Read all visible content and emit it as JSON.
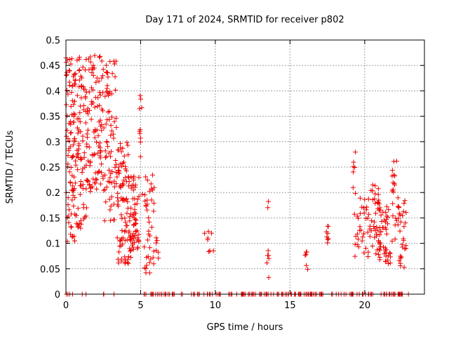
{
  "chart_data": {
    "type": "scatter",
    "title": "Day 171 of 2024, SRMTID for receiver p802",
    "xlabel": "GPS time / hours",
    "ylabel": "SRMTID / TECUs",
    "xlim": [
      0,
      24
    ],
    "ylim": [
      0,
      0.5
    ],
    "xticks": [
      0,
      5,
      10,
      15,
      20
    ],
    "yticks": [
      0,
      0.05,
      0.1,
      0.15,
      0.2,
      0.25,
      0.3,
      0.35,
      0.4,
      0.45,
      0.5
    ],
    "grid": true,
    "marker": "+",
    "marker_color": "#ee0000",
    "series": [
      {
        "name": "p802",
        "clusters": [
          {
            "x_range": [
              0.0,
              0.6
            ],
            "y_range": [
              0.1,
              0.47
            ],
            "count": 90
          },
          {
            "x_range": [
              0.6,
              1.4
            ],
            "y_range": [
              0.12,
              0.47
            ],
            "count": 90
          },
          {
            "x_range": [
              1.4,
              2.4
            ],
            "y_range": [
              0.2,
              0.47
            ],
            "count": 90
          },
          {
            "x_range": [
              2.4,
              3.4
            ],
            "y_range": [
              0.14,
              0.46
            ],
            "count": 80
          },
          {
            "x_range": [
              3.4,
              4.2
            ],
            "y_range": [
              0.06,
              0.3
            ],
            "count": 80
          },
          {
            "x_range": [
              4.2,
              4.9
            ],
            "y_range": [
              0.07,
              0.24
            ],
            "count": 70
          },
          {
            "x_range": [
              4.9,
              5.1
            ],
            "y_range": [
              0.25,
              0.4
            ],
            "count": 10
          },
          {
            "x_range": [
              5.1,
              5.9
            ],
            "y_range": [
              0.04,
              0.24
            ],
            "count": 40
          },
          {
            "x_range": [
              6.0,
              6.3
            ],
            "y_range": [
              0.07,
              0.13
            ],
            "count": 6
          },
          {
            "x_range": [
              9.2,
              9.9
            ],
            "y_range": [
              0.08,
              0.14
            ],
            "count": 8
          },
          {
            "x_range": [
              13.4,
              13.6
            ],
            "y_range": [
              0.03,
              0.19
            ],
            "count": 8
          },
          {
            "x_range": [
              16.0,
              16.2
            ],
            "y_range": [
              0.03,
              0.09
            ],
            "count": 6
          },
          {
            "x_range": [
              17.4,
              17.6
            ],
            "y_range": [
              0.1,
              0.14
            ],
            "count": 8
          },
          {
            "x_range": [
              19.2,
              19.4
            ],
            "y_range": [
              0.07,
              0.28
            ],
            "count": 10
          },
          {
            "x_range": [
              19.4,
              20.0
            ],
            "y_range": [
              0.08,
              0.19
            ],
            "count": 20
          },
          {
            "x_range": [
              20.0,
              21.0
            ],
            "y_range": [
              0.07,
              0.22
            ],
            "count": 50
          },
          {
            "x_range": [
              21.0,
              21.8
            ],
            "y_range": [
              0.06,
              0.18
            ],
            "count": 45
          },
          {
            "x_range": [
              21.8,
              22.3
            ],
            "y_range": [
              0.1,
              0.28
            ],
            "count": 25
          },
          {
            "x_range": [
              22.3,
              22.8
            ],
            "y_range": [
              0.05,
              0.19
            ],
            "count": 25
          }
        ],
        "zero_values": [
          {
            "x_range": [
              0.0,
              0.5
            ],
            "count": 4
          },
          {
            "x_range": [
              1.0,
              1.4
            ],
            "count": 2
          },
          {
            "x_range": [
              2.5,
              3.3
            ],
            "count": 3
          },
          {
            "x_range": [
              5.2,
              23.0
            ],
            "count": 170
          }
        ]
      }
    ]
  }
}
